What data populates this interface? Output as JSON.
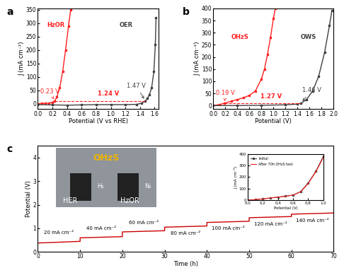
{
  "chart_data": [
    {
      "type": "line",
      "title": "a",
      "x_label": "Potential (V vs RHE)",
      "y_label": "J (mA cm⁻²)",
      "xlim": [
        0,
        1.65
      ],
      "xticks": [
        {
          "value": 0,
          "label": "0.0"
        },
        {
          "value": 0.2,
          "label": "0.2"
        },
        {
          "value": 0.4,
          "label": "0.4"
        },
        {
          "value": 0.6,
          "label": "0.6"
        },
        {
          "value": 0.8,
          "label": "0.8"
        },
        {
          "value": 1.0,
          "label": "1.0"
        },
        {
          "value": 1.2,
          "label": "1.2"
        },
        {
          "value": 1.4,
          "label": "1.4"
        },
        {
          "value": 1.6,
          "label": "1.6"
        }
      ],
      "ylim": [
        -20,
        355
      ],
      "yticks": [
        0,
        50,
        100,
        150,
        200,
        250,
        300,
        350
      ],
      "series": [
        {
          "name": "HzOR",
          "color": "#ff2020",
          "marker": "s",
          "x": [
            0,
            0.05,
            0.1,
            0.15,
            0.2,
            0.23,
            0.26,
            0.3,
            0.34,
            0.38,
            0.42,
            0.45
          ],
          "values": [
            0,
            1,
            2,
            3,
            6,
            10,
            25,
            60,
            120,
            200,
            290,
            350
          ]
        },
        {
          "name": "OER",
          "color": "#404040",
          "marker": "s",
          "x": [
            0,
            0.2,
            0.4,
            0.6,
            0.8,
            1.0,
            1.2,
            1.35,
            1.42,
            1.47,
            1.5,
            1.53,
            1.56,
            1.59,
            1.61,
            1.62
          ],
          "values": [
            -3,
            -4,
            -5,
            -4,
            -3,
            -3,
            -3,
            -2,
            2,
            10,
            20,
            35,
            60,
            120,
            220,
            320
          ]
        }
      ],
      "gap": {
        "x": [
          0.23,
          1.47
        ],
        "y": 10,
        "color": "#ff2020"
      },
      "annotations": [
        {
          "text": "HzOR",
          "x": 0.12,
          "y": 280,
          "color": "#ff2020"
        },
        {
          "text": "OER",
          "x": 1.12,
          "y": 280,
          "color": "#404040"
        },
        {
          "text": "0.23 V",
          "x": 0.03,
          "y": 40,
          "point": [
            0.23,
            10
          ],
          "color": "#ff2020"
        },
        {
          "text": "1.24 V",
          "x": 0.82,
          "y": 25,
          "color": "#ff2020"
        },
        {
          "text": "1.47 V",
          "x": 1.22,
          "y": 60,
          "point": [
            1.47,
            12
          ],
          "color": "#404040"
        }
      ]
    },
    {
      "type": "line",
      "title": "b",
      "x_label": "Potential (V)",
      "y_label": "J (mA cm⁻²)",
      "xlim": [
        0,
        2.0
      ],
      "xticks": [
        {
          "value": 0,
          "label": "0.0"
        },
        {
          "value": 0.2,
          "label": "0.2"
        },
        {
          "value": 0.4,
          "label": "0.4"
        },
        {
          "value": 0.6,
          "label": "0.6"
        },
        {
          "value": 0.8,
          "label": "0.8"
        },
        {
          "value": 1.0,
          "label": "1.0"
        },
        {
          "value": 1.2,
          "label": "1.2"
        },
        {
          "value": 1.4,
          "label": "1.4"
        },
        {
          "value": 1.6,
          "label": "1.6"
        },
        {
          "value": 1.8,
          "label": "1.8"
        },
        {
          "value": 2.0,
          "label": "2.0"
        }
      ],
      "ylim": [
        -15,
        400
      ],
      "yticks": [
        0,
        50,
        100,
        150,
        200,
        250,
        300,
        350,
        400
      ],
      "series": [
        {
          "name": "OHzS",
          "color": "#ff2020",
          "marker": "s",
          "x": [
            0,
            0.1,
            0.19,
            0.3,
            0.4,
            0.5,
            0.6,
            0.7,
            0.8,
            0.85,
            0.9,
            0.95,
            1.0,
            1.03
          ],
          "values": [
            0,
            4,
            10,
            18,
            25,
            32,
            42,
            60,
            110,
            150,
            210,
            280,
            360,
            400
          ]
        },
        {
          "name": "OWS",
          "color": "#404040",
          "marker": "s",
          "x": [
            0,
            0.4,
            0.8,
            1.2,
            1.4,
            1.46,
            1.55,
            1.65,
            1.75,
            1.85,
            1.93,
            1.97
          ],
          "values": [
            0,
            0,
            1,
            3,
            6,
            10,
            25,
            60,
            120,
            220,
            330,
            390
          ]
        }
      ],
      "gap": {
        "x": [
          0.19,
          1.46
        ],
        "y": 10,
        "color": "#ff2020"
      },
      "annotations": [
        {
          "text": "OHzS",
          "x": 0.3,
          "y": 270,
          "color": "#ff2020"
        },
        {
          "text": "OWS",
          "x": 1.45,
          "y": 270,
          "color": "#404040"
        },
        {
          "text": "0.19 V",
          "x": 0.04,
          "y": 45,
          "point": [
            0.19,
            10
          ],
          "color": "#ff2020"
        },
        {
          "text": "1.27 V",
          "x": 0.78,
          "y": 25,
          "color": "#ff2020"
        },
        {
          "text": "1.46 V",
          "x": 1.48,
          "y": 55,
          "point": [
            1.46,
            12
          ],
          "color": "#404040"
        }
      ]
    },
    {
      "type": "line",
      "title": "c",
      "x_label": "Time (h)",
      "y_label": "Potential (V)",
      "xlim": [
        0,
        70
      ],
      "xticks": [
        0,
        10,
        20,
        30,
        40,
        50,
        60,
        70
      ],
      "ylim": [
        0,
        4.5
      ],
      "yticks": [
        0,
        1,
        2,
        3,
        4
      ],
      "series": [
        {
          "name": "OHzS",
          "color": "#cc0000",
          "x": [
            0,
            10,
            10,
            20,
            20,
            30,
            30,
            40,
            40,
            50,
            50,
            60,
            60,
            70
          ],
          "values": [
            0.38,
            0.45,
            0.6,
            0.65,
            0.85,
            0.9,
            1.05,
            1.1,
            1.25,
            1.3,
            1.45,
            1.5,
            1.6,
            1.65
          ]
        }
      ],
      "annotations": [
        {
          "text": "20 mA cm⁻²",
          "x": 5,
          "y": 0.72,
          "color": "#000000"
        },
        {
          "text": "40 mA cm⁻²",
          "x": 15,
          "y": 0.92,
          "color": "#000000"
        },
        {
          "text": "60 mA cm⁻²",
          "x": 25,
          "y": 1.15,
          "color": "#000000"
        },
        {
          "text": "80 mA cm⁻²",
          "x": 35,
          "y": 0.7,
          "color": "#000000"
        },
        {
          "text": "100 mA cm⁻²",
          "x": 45,
          "y": 0.9,
          "color": "#000000"
        },
        {
          "text": "120 mA cm⁻²",
          "x": 55,
          "y": 1.1,
          "color": "#000000"
        },
        {
          "text": "140 mA cm⁻²",
          "x": 65,
          "y": 1.25,
          "color": "#000000"
        }
      ]
    },
    {
      "type": "line",
      "x_label": "Potential (V)",
      "y_label": "J (mA cm⁻²)",
      "xlim": [
        0,
        1.0
      ],
      "xticks": [
        {
          "value": 0,
          "label": "0.0"
        },
        {
          "value": 0.2,
          "label": "0.2"
        },
        {
          "value": 0.4,
          "label": "0.4"
        },
        {
          "value": 0.6,
          "label": "0.6"
        },
        {
          "value": 0.8,
          "label": "0.8"
        },
        {
          "value": 1.0,
          "label": "1.0"
        }
      ],
      "ylim": [
        0,
        400
      ],
      "yticks": [
        0,
        100,
        200,
        300,
        400
      ],
      "legend": "upper left",
      "series": [
        {
          "name": "Initial",
          "color": "#404040",
          "marker": "o",
          "x": [
            0,
            0.1,
            0.2,
            0.3,
            0.4,
            0.5,
            0.6,
            0.7,
            0.8,
            0.9,
            1.0
          ],
          "values": [
            0,
            5,
            12,
            20,
            27,
            35,
            45,
            75,
            150,
            250,
            380
          ]
        },
        {
          "name": "After 70h OHzS test",
          "color": "#ff2020",
          "x": [
            0,
            0.1,
            0.2,
            0.3,
            0.4,
            0.5,
            0.6,
            0.7,
            0.8,
            0.9,
            1.0
          ],
          "values": [
            0,
            5,
            11,
            19,
            26,
            34,
            44,
            72,
            145,
            245,
            370
          ]
        }
      ]
    }
  ],
  "photo": {
    "title": "OHzS",
    "gases": [
      "H₂",
      "N₂"
    ],
    "electrodes": [
      "HER",
      "HzOR"
    ]
  }
}
